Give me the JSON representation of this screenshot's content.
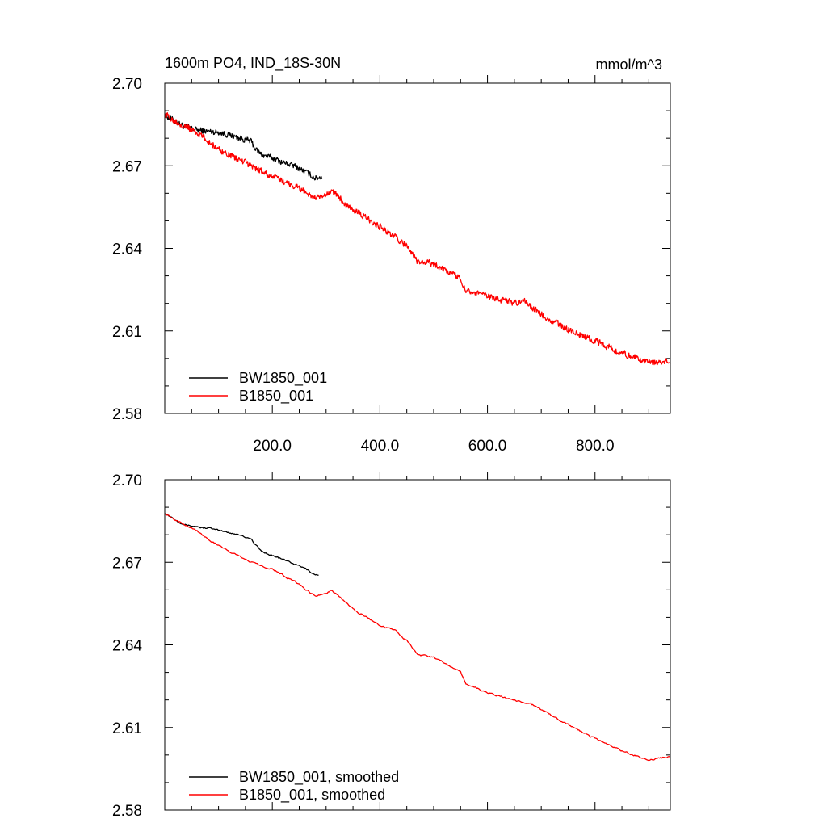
{
  "chart_data": [
    {
      "type": "line",
      "title": "1600m PO4, IND_18S-30N",
      "units": "mmol/m^3",
      "xlabel": "",
      "ylabel": "",
      "xlim": [
        0,
        940
      ],
      "ylim": [
        2.58,
        2.7
      ],
      "xticks": [
        200,
        400,
        600,
        800
      ],
      "xtick_labels": [
        "200.0",
        "400.0",
        "600.0",
        "800.0"
      ],
      "yticks": [
        2.58,
        2.61,
        2.64,
        2.67,
        2.7
      ],
      "ytick_labels": [
        "2.58",
        "2.61",
        "2.64",
        "2.67",
        "2.70"
      ],
      "legend_position": "bottom-left",
      "series": [
        {
          "name": "BW1850_001",
          "color": "#000000",
          "noise": 0.0012,
          "x": [
            0,
            20,
            40,
            60,
            80,
            100,
            120,
            140,
            160,
            170,
            180,
            200,
            220,
            240,
            260,
            280,
            292
          ],
          "values": [
            2.6885,
            2.686,
            2.684,
            2.683,
            2.6825,
            2.6822,
            2.6812,
            2.68,
            2.679,
            2.6758,
            2.674,
            2.6728,
            2.6712,
            2.67,
            2.668,
            2.6655,
            2.666
          ]
        },
        {
          "name": "B1850_001",
          "color": "#ff0000",
          "noise": 0.0013,
          "x": [
            0,
            20,
            40,
            60,
            80,
            100,
            150,
            200,
            250,
            280,
            300,
            310,
            350,
            400,
            450,
            470,
            500,
            550,
            560,
            600,
            650,
            670,
            700,
            750,
            800,
            850,
            900,
            940
          ],
          "values": [
            2.6885,
            2.6865,
            2.6842,
            2.682,
            2.679,
            2.676,
            2.671,
            2.666,
            2.662,
            2.658,
            2.659,
            2.661,
            2.654,
            2.648,
            2.641,
            2.635,
            2.6345,
            2.629,
            2.625,
            2.6225,
            2.62,
            2.6205,
            2.616,
            2.6105,
            2.6065,
            2.602,
            2.5985,
            2.599
          ]
        }
      ]
    },
    {
      "type": "line",
      "title": "",
      "units": "",
      "xlabel": "",
      "ylabel": "",
      "xlim": [
        0,
        940
      ],
      "ylim": [
        2.58,
        2.7
      ],
      "xticks": [
        200,
        400,
        600,
        800
      ],
      "xtick_labels": [],
      "yticks": [
        2.58,
        2.61,
        2.64,
        2.67,
        2.7
      ],
      "ytick_labels": [
        "2.58",
        "2.61",
        "2.64",
        "2.67",
        "2.70"
      ],
      "legend_position": "bottom-left",
      "series": [
        {
          "name": "BW1850_001, smoothed",
          "color": "#000000",
          "noise": 0.0003,
          "x": [
            0,
            20,
            40,
            60,
            70,
            80,
            100,
            120,
            140,
            160,
            170,
            180,
            200,
            220,
            240,
            260,
            280,
            287
          ],
          "values": [
            2.688,
            2.6855,
            2.6835,
            2.683,
            2.6825,
            2.6825,
            2.6815,
            2.6808,
            2.68,
            2.6785,
            2.676,
            2.674,
            2.6725,
            2.671,
            2.6695,
            2.6678,
            2.6655,
            2.6655
          ]
        },
        {
          "name": "B1850_001, smoothed",
          "color": "#ff0000",
          "noise": 0.0003,
          "x": [
            0,
            20,
            40,
            60,
            80,
            100,
            150,
            200,
            250,
            280,
            300,
            310,
            350,
            400,
            430,
            450,
            470,
            500,
            550,
            560,
            600,
            650,
            680,
            700,
            750,
            800,
            850,
            900,
            940
          ],
          "values": [
            2.688,
            2.6855,
            2.6835,
            2.6815,
            2.6785,
            2.676,
            2.671,
            2.6675,
            2.662,
            2.6575,
            2.659,
            2.66,
            2.653,
            2.647,
            2.645,
            2.6415,
            2.6365,
            2.6355,
            2.63,
            2.626,
            2.6225,
            2.62,
            2.6185,
            2.6165,
            2.611,
            2.606,
            2.6015,
            2.598,
            2.5995
          ]
        }
      ]
    }
  ]
}
